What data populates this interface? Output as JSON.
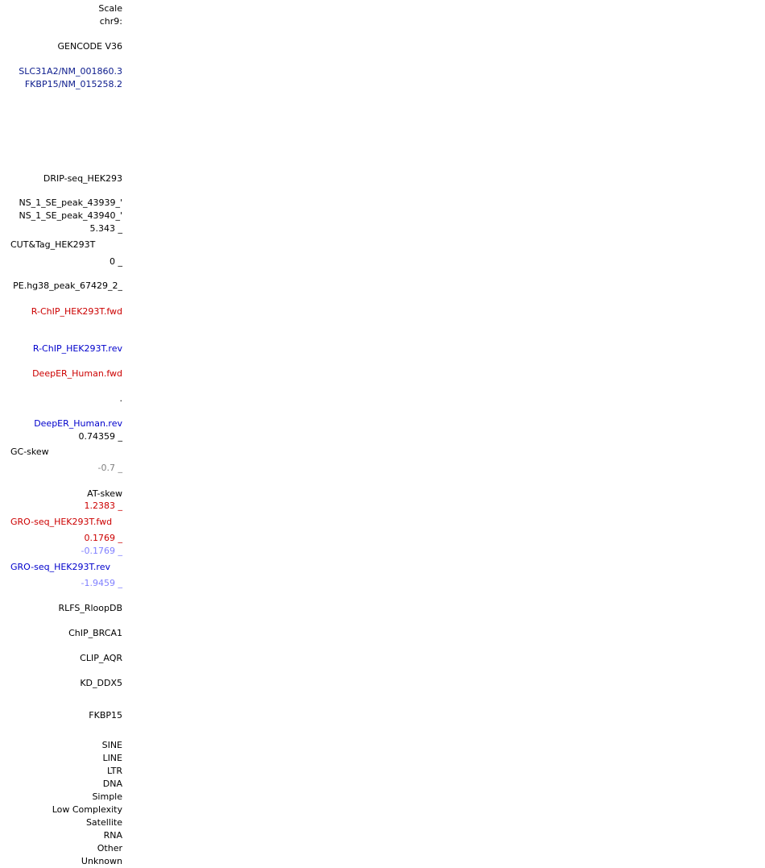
{
  "header": {
    "scale": "Scale",
    "chrom": "chr9:"
  },
  "gencode": {
    "title": "GENCODE V36",
    "transcripts": [
      "SLC31A2/NM_001860.3",
      "FKBP15/NM_015258.2"
    ]
  },
  "tracks": {
    "drip": "DRIP-seq_HEK293",
    "peak1": "'_NS_1_SE_peak_43939",
    "peak2": "'_NS_1_SE_peak_43940",
    "cut_max": "5.343 _",
    "cut_name": "CUT&Tag_HEK293T",
    "cut_min": "0 _",
    "pe_peak": "_2_PE.hg38_peak_67429",
    "rchip_fwd": "R-ChIP_HEK293T.fwd",
    "rchip_rev": "R-ChIP_HEK293T.rev",
    "deeper_fwd": "DeepER_Human.fwd",
    "dot": ".",
    "deeper_rev": "DeepER_Human.rev",
    "gc_max": "0.74359 _",
    "gc_name": "GC-skew",
    "gc_min": "-0.7 _",
    "at_name": "AT-skew",
    "gro_fwd_max": "1.2383 _",
    "gro_fwd_name": "GRO-seq_HEK293T.fwd",
    "gro_fwd_min": "0.1769 _",
    "gro_rev_max": "-0.1769 _",
    "gro_rev_name": "GRO-seq_HEK293T.rev",
    "gro_rev_min": "-1.9459 _",
    "rlfs": "RLFS_RloopDB",
    "chip_brca1": "ChIP_BRCA1",
    "clip_aqr": "CLIP_AQR",
    "kd_ddx5": "KD_DDX5",
    "fkbp15": "FKBP15"
  },
  "repeats": [
    "SINE",
    "LINE",
    "LTR",
    "DNA",
    "Simple",
    "Low Complexity",
    "Satellite",
    "RNA",
    "Other",
    "Unknown"
  ],
  "colors": {
    "fwd": "#cc0000",
    "rev": "#0000cc",
    "transcript": "#0a1a8c",
    "neg_axis": "#7f7fff",
    "grey_axis": "#808080"
  }
}
